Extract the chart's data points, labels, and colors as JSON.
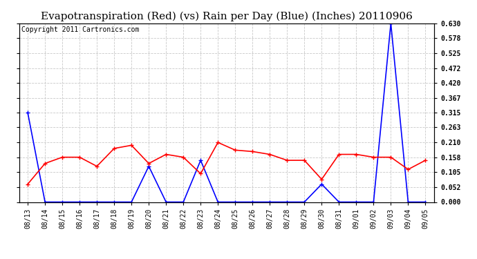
{
  "title": "Evapotranspiration (Red) (vs) Rain per Day (Blue) (Inches) 20110906",
  "copyright": "Copyright 2011 Cartronics.com",
  "x_labels": [
    "08/13",
    "08/14",
    "08/15",
    "08/16",
    "08/17",
    "08/18",
    "08/19",
    "08/20",
    "08/21",
    "08/22",
    "08/23",
    "08/24",
    "08/25",
    "08/26",
    "08/27",
    "08/28",
    "08/29",
    "08/30",
    "08/31",
    "09/01",
    "09/02",
    "09/03",
    "09/04",
    "09/05"
  ],
  "blue_data": [
    0.315,
    0.0,
    0.0,
    0.0,
    0.0,
    0.0,
    0.0,
    0.126,
    0.0,
    0.0,
    0.147,
    0.0,
    0.0,
    0.0,
    0.0,
    0.0,
    0.0,
    0.063,
    0.0,
    0.0,
    0.0,
    0.63,
    0.0,
    0.0
  ],
  "red_data": [
    0.063,
    0.136,
    0.158,
    0.158,
    0.126,
    0.189,
    0.2,
    0.136,
    0.168,
    0.158,
    0.1,
    0.21,
    0.183,
    0.178,
    0.168,
    0.147,
    0.147,
    0.08,
    0.168,
    0.168,
    0.158,
    0.158,
    0.115,
    0.147
  ],
  "blue_color": "#0000ff",
  "red_color": "#ff0000",
  "bg_color": "#ffffff",
  "plot_bg_color": "#ffffff",
  "grid_color": "#c8c8c8",
  "y_ticks": [
    0.0,
    0.052,
    0.105,
    0.158,
    0.21,
    0.263,
    0.315,
    0.367,
    0.42,
    0.472,
    0.525,
    0.578,
    0.63
  ],
  "y_min": 0.0,
  "y_max": 0.63,
  "title_fontsize": 11,
  "copyright_fontsize": 7,
  "tick_fontsize": 7,
  "marker": "+",
  "marker_size": 5,
  "line_width": 1.2
}
